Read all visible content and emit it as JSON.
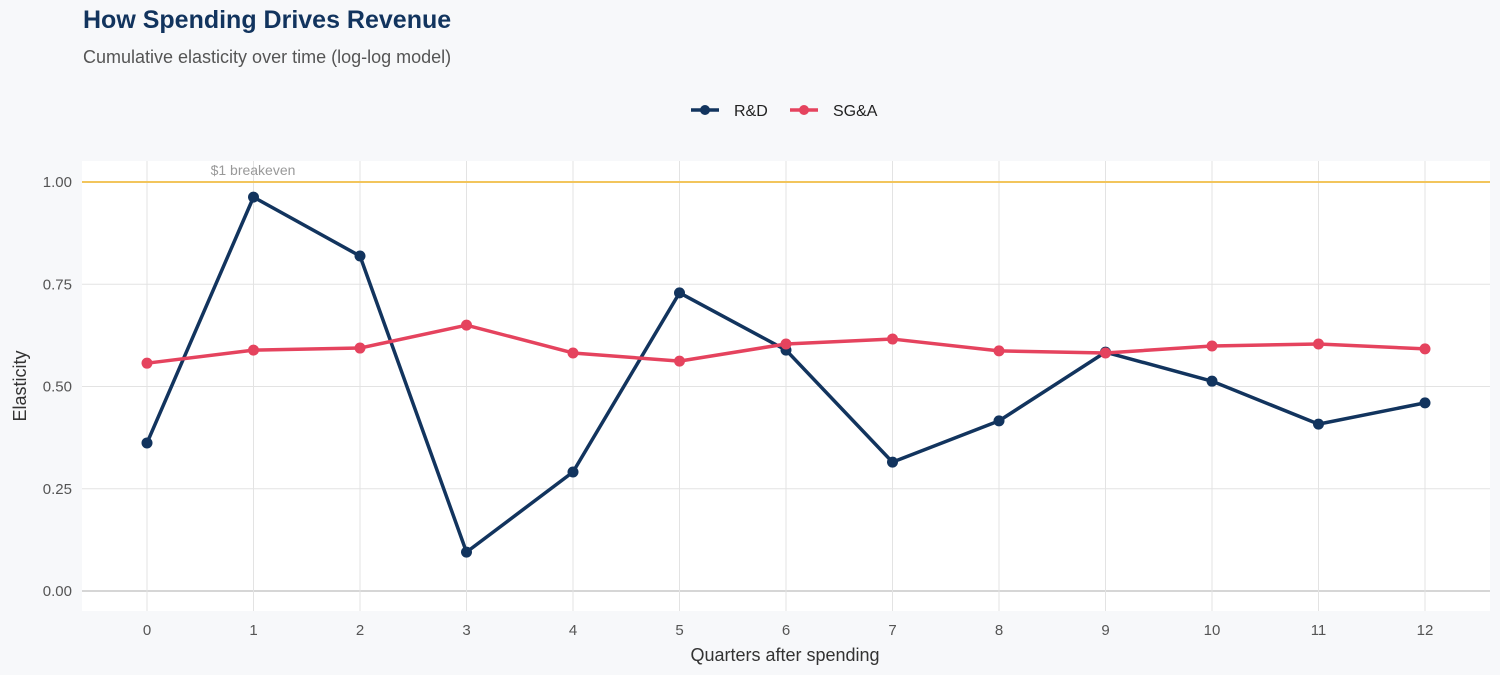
{
  "chart_data": {
    "type": "line",
    "title": "How Spending Drives Revenue",
    "subtitle": "Cumulative elasticity over time (log-log model)",
    "xlabel": "Quarters after spending",
    "ylabel": "Elasticity",
    "x": [
      0,
      1,
      2,
      3,
      4,
      5,
      6,
      7,
      8,
      9,
      10,
      11,
      12
    ],
    "x_ticks": [
      "0",
      "1",
      "2",
      "3",
      "4",
      "5",
      "6",
      "7",
      "8",
      "9",
      "10",
      "11",
      "12"
    ],
    "y_ticks": [
      "0.00",
      "0.25",
      "0.50",
      "0.75",
      "1.00"
    ],
    "ylim": [
      0,
      1.05
    ],
    "xlim": [
      -0.6,
      12.6
    ],
    "grid": true,
    "legend_position": "top",
    "reference_line": {
      "y": 1.0,
      "label": "$1 breakeven",
      "color": "#f2c55c"
    },
    "series": [
      {
        "name": "R&D",
        "color": "#12345e",
        "values": [
          0.362,
          0.963,
          0.819,
          0.095,
          0.291,
          0.729,
          0.589,
          0.315,
          0.416,
          0.584,
          0.513,
          0.408,
          0.46
        ]
      },
      {
        "name": "SG&A",
        "color": "#e5435e",
        "values": [
          0.557,
          0.589,
          0.594,
          0.65,
          0.582,
          0.562,
          0.604,
          0.616,
          0.587,
          0.582,
          0.599,
          0.604,
          0.592
        ]
      }
    ]
  }
}
